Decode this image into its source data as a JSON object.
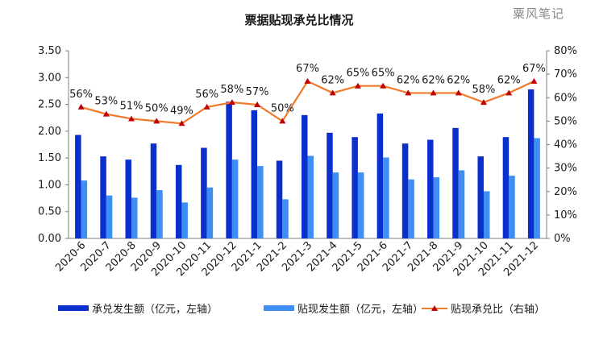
{
  "chart_data": {
    "type": "bar",
    "title": "票据贴现承兑比情况",
    "watermark": "粟风笔记",
    "categories": [
      "2020-6",
      "2020-7",
      "2020-8",
      "2020-9",
      "2020-10",
      "2020-11",
      "2020-12",
      "2021-1",
      "2021-2",
      "2021-3",
      "2021-4",
      "2021-5",
      "2021-6",
      "2021-7",
      "2021-8",
      "2021-9",
      "2021-10",
      "2021-11",
      "2021-12"
    ],
    "series": [
      {
        "name": "承兑发生额（亿元，左轴）",
        "kind": "bar",
        "axis": "left",
        "color": "#0b2fcc",
        "values": [
          1.93,
          1.53,
          1.47,
          1.77,
          1.37,
          1.69,
          2.55,
          2.39,
          1.45,
          2.3,
          1.97,
          1.89,
          2.33,
          1.77,
          1.84,
          2.06,
          1.53,
          1.89,
          2.78
        ]
      },
      {
        "name": "贴现发生额（亿元，左轴）",
        "kind": "bar",
        "axis": "left",
        "color": "#3d8ef5",
        "values": [
          1.08,
          0.8,
          0.76,
          0.9,
          0.67,
          0.95,
          1.47,
          1.35,
          0.73,
          1.54,
          1.23,
          1.23,
          1.51,
          1.1,
          1.14,
          1.27,
          0.88,
          1.17,
          1.87
        ]
      },
      {
        "name": "贴现承兑比（右轴）",
        "kind": "line",
        "axis": "right",
        "color": "#f07a2a",
        "marker_color": "#c00000",
        "values": [
          56,
          53,
          51,
          50,
          49,
          56,
          58,
          57,
          50,
          67,
          62,
          65,
          65,
          62,
          62,
          62,
          58,
          62,
          67
        ],
        "labels": [
          "56%",
          "53%",
          "51%",
          "50%",
          "49%",
          "56%",
          "58%",
          "57%",
          "50%",
          "67%",
          "62%",
          "65%",
          "65%",
          "62%",
          "62%",
          "62%",
          "58%",
          "62%",
          "67%"
        ]
      }
    ],
    "y_left": {
      "min": 0,
      "max": 3.5,
      "ticks": [
        "0.00",
        "0.50",
        "1.00",
        "1.50",
        "2.00",
        "2.50",
        "3.00",
        "3.50"
      ]
    },
    "y_right": {
      "min": 0,
      "max": 80,
      "ticks": [
        "0%",
        "10%",
        "20%",
        "30%",
        "40%",
        "50%",
        "60%",
        "70%",
        "80%"
      ]
    },
    "grid": false,
    "legend": "bottom"
  }
}
